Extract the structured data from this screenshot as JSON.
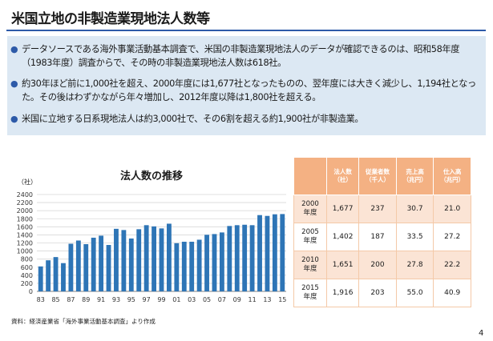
{
  "title": "米国立地の非製造業現地法人数等",
  "bullets": [
    "データソースである海外事業活動基本調査で、米国の非製造業現地法人のデータが確認できるのは、昭和58年度（1983年度）調査からで、その時の非製造業現地法人数は618社。",
    "約30年ほど前に1,000社を超え、2000年度には1,677社となったものの、翌年度には大きく減少し、1,194社となった。その後はわずかながら年々増加し、2012年度以降は1,800社を超える。",
    "米国に立地する日系現地法人は約3,000社で、その6割を超える約1,900社が非製造業。"
  ],
  "chart_data": {
    "type": "bar",
    "title": "法人数の推移",
    "unit_label": "（社）",
    "x": [
      1983,
      1984,
      1985,
      1986,
      1987,
      1988,
      1989,
      1990,
      1991,
      1992,
      1993,
      1994,
      1995,
      1996,
      1997,
      1998,
      1999,
      2000,
      2001,
      2002,
      2003,
      2004,
      2005,
      2006,
      2007,
      2008,
      2009,
      2010,
      2011,
      2012,
      2013,
      2014,
      2015
    ],
    "x_tick_labels": [
      "83",
      "85",
      "87",
      "89",
      "91",
      "93",
      "95",
      "97",
      "99",
      "01",
      "03",
      "05",
      "07",
      "09",
      "11",
      "13",
      "15"
    ],
    "values": [
      618,
      770,
      850,
      700,
      1180,
      1260,
      1170,
      1330,
      1380,
      1150,
      1550,
      1520,
      1310,
      1540,
      1640,
      1610,
      1560,
      1677,
      1194,
      1230,
      1230,
      1280,
      1402,
      1420,
      1460,
      1620,
      1640,
      1651,
      1640,
      1890,
      1870,
      1910,
      1916
    ],
    "ylim": [
      0,
      2400
    ],
    "y_ticks": [
      0,
      200,
      400,
      600,
      800,
      1000,
      1200,
      1400,
      1600,
      1800,
      2000,
      2200,
      2400
    ],
    "grid": true,
    "bar_color": "#2e75b6"
  },
  "table": {
    "headers": [
      "",
      "法人数\n（社）",
      "従業者数\n（千人）",
      "売上高\n（兆円）",
      "仕入高\n（兆円）"
    ],
    "rows": [
      {
        "year": "2000\n年度",
        "cells": [
          "1,677",
          "237",
          "30.7",
          "21.0"
        ]
      },
      {
        "year": "2005\n年度",
        "cells": [
          "1,402",
          "187",
          "33.5",
          "27.2"
        ]
      },
      {
        "year": "2010\n年度",
        "cells": [
          "1,651",
          "200",
          "27.8",
          "22.2"
        ]
      },
      {
        "year": "2015\n年度",
        "cells": [
          "1,916",
          "203",
          "55.0",
          "40.9"
        ]
      }
    ]
  },
  "source": "資料：経済産業省「海外事業活動基本調査」より作成",
  "page_number": "4",
  "colors": {
    "accent": "#2d5aa8",
    "table_header": "#f4b183",
    "table_band": "#fbe4d5",
    "bullet_bg": "#dce8f3"
  }
}
